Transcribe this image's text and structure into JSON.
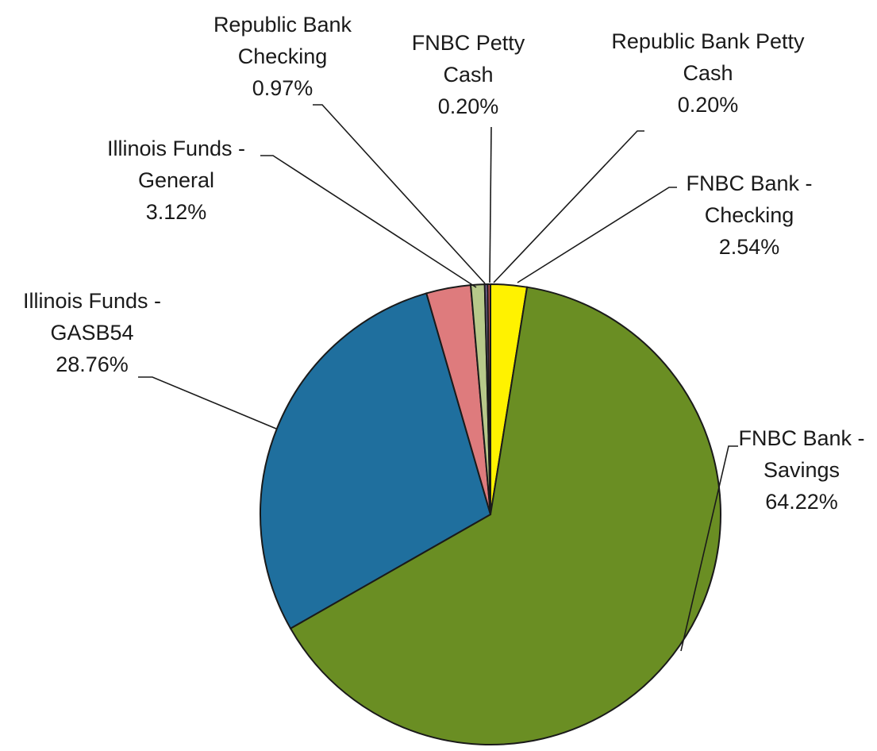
{
  "chart_data": {
    "type": "pie",
    "title": "",
    "start_angle_deg": 90,
    "direction": "clockwise",
    "slices": [
      {
        "category": "FNBC Bank - Checking",
        "value": 2.54,
        "label_lines": [
          "FNBC Bank -",
          "Checking",
          "2.54%"
        ],
        "color": "#FFF200"
      },
      {
        "category": "FNBC Bank - Savings",
        "value": 64.22,
        "label_lines": [
          "FNBC Bank -",
          "Savings",
          "64.22%"
        ],
        "color": "#6A8E23"
      },
      {
        "category": "Illinois Funds - GASB54",
        "value": 28.76,
        "label_lines": [
          "Illinois Funds -",
          "GASB54",
          "28.76%"
        ],
        "color": "#1F6F9E"
      },
      {
        "category": "Illinois Funds - General",
        "value": 3.12,
        "label_lines": [
          "Illinois Funds -",
          "General",
          "3.12%"
        ],
        "color": "#DE7B7D"
      },
      {
        "category": "Republic Bank Checking",
        "value": 0.97,
        "label_lines": [
          "Republic Bank",
          "Checking",
          "0.97%"
        ],
        "color": "#B7C98A"
      },
      {
        "category": "FNBC Petty Cash",
        "value": 0.2,
        "label_lines": [
          "FNBC Petty",
          "Cash",
          "0.20%"
        ],
        "color": "#7A6AA0"
      },
      {
        "category": "Republic Bank Petty Cash",
        "value": 0.2,
        "label_lines": [
          "Republic Bank Petty",
          "Cash",
          "0.20%"
        ],
        "color": "#C0504D"
      }
    ]
  }
}
